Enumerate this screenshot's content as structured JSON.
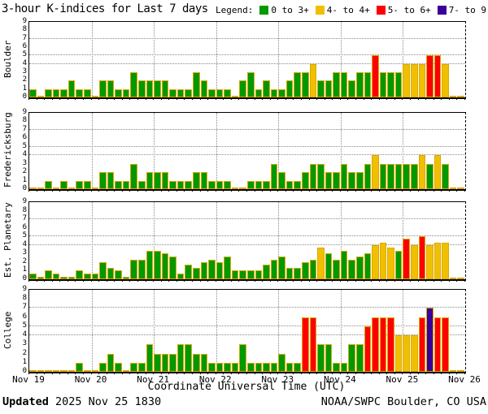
{
  "title": "3-hour K-indices for Last 7 days",
  "legend": {
    "label": "Legend:",
    "items": [
      {
        "label": "0 to 3+",
        "color": "#009900"
      },
      {
        "label": "4- to 4+",
        "color": "#F0C000"
      },
      {
        "label": "5- to 6+",
        "color": "#FF0000"
      },
      {
        "label": "7- to 9",
        "color": "#3A0099"
      }
    ]
  },
  "chart_data": {
    "type": "bar",
    "title": "3-hour K-indices for Last 7 days",
    "xlabel": "Coordinate Universal Time (UTC)",
    "x_labels": [
      "Nov 19",
      "Nov 20",
      "Nov 21",
      "Nov 22",
      "Nov 23",
      "Nov 24",
      "Nov 25",
      "Nov 26"
    ],
    "slots_per_day": 8,
    "ylim": [
      0,
      9
    ],
    "yticks": [
      0,
      1,
      2,
      3,
      4,
      5,
      6,
      7,
      8,
      9
    ],
    "hgrid_levels": [
      4,
      5,
      7
    ],
    "grid": "dotted",
    "colors": {
      "green": "#009900",
      "yellow": "#F0C000",
      "red": "#FF0000",
      "purple": "#3A0099",
      "bar_outline": "#DCA800"
    },
    "color_rule": {
      "yellow_min": 3.5,
      "red_min": 4.5,
      "purple_min": 6.5
    },
    "series": [
      {
        "name": "Boulder",
        "values": [
          1,
          0,
          1,
          1,
          1,
          2,
          1,
          1,
          0,
          2,
          2,
          1,
          1,
          3,
          2,
          2,
          2,
          2,
          1,
          1,
          1,
          3,
          2,
          1,
          1,
          1,
          0,
          2,
          3,
          1,
          2,
          1,
          1,
          2,
          3,
          3,
          4,
          2,
          2,
          3,
          3,
          2,
          3,
          3,
          5,
          3,
          3,
          3,
          4,
          4,
          4,
          5,
          5,
          4,
          0,
          0
        ]
      },
      {
        "name": "Fredericksburg",
        "values": [
          0,
          0,
          1,
          0,
          1,
          0,
          1,
          1,
          0,
          2,
          2,
          1,
          1,
          3,
          1,
          2,
          2,
          2,
          1,
          1,
          1,
          2,
          2,
          1,
          1,
          1,
          0,
          0,
          1,
          1,
          1,
          3,
          2,
          1,
          1,
          2,
          3,
          3,
          2,
          2,
          3,
          2,
          2,
          3,
          4,
          3,
          3,
          3,
          3,
          3,
          4,
          3,
          4,
          3,
          0,
          0
        ]
      },
      {
        "name": "Est. Planetary",
        "values": [
          0.7,
          0.3,
          1.0,
          0.7,
          0.3,
          0.3,
          1.0,
          0.7,
          0.7,
          2.0,
          1.3,
          1.0,
          0.3,
          2.3,
          2.3,
          3.3,
          3.3,
          3.0,
          2.7,
          0.7,
          1.7,
          1.3,
          2.0,
          2.3,
          2.0,
          2.7,
          1.0,
          1.0,
          1.0,
          1.0,
          1.7,
          2.3,
          2.7,
          1.3,
          1.3,
          2.0,
          2.3,
          3.7,
          3.0,
          2.3,
          3.3,
          2.3,
          2.7,
          3.0,
          4.0,
          4.3,
          3.7,
          3.3,
          4.7,
          4.0,
          5.0,
          4.0,
          4.3,
          4.3,
          0,
          0
        ]
      },
      {
        "name": "College",
        "values": [
          0,
          0,
          0,
          0,
          0,
          0,
          1,
          0,
          0,
          1,
          2,
          1,
          0,
          1,
          1,
          3,
          2,
          2,
          2,
          3,
          3,
          2,
          2,
          1,
          1,
          1,
          1,
          3,
          1,
          1,
          1,
          1,
          2,
          1,
          1,
          6,
          6,
          3,
          3,
          1,
          1,
          3,
          3,
          5,
          6,
          6,
          6,
          4,
          4,
          4,
          6,
          7,
          6,
          6,
          0,
          0
        ]
      }
    ]
  },
  "footer": {
    "updated_label": "Updated",
    "updated_value": " 2025 Nov 25 1830",
    "attribution": "NOAA/SWPC Boulder, CO USA"
  }
}
